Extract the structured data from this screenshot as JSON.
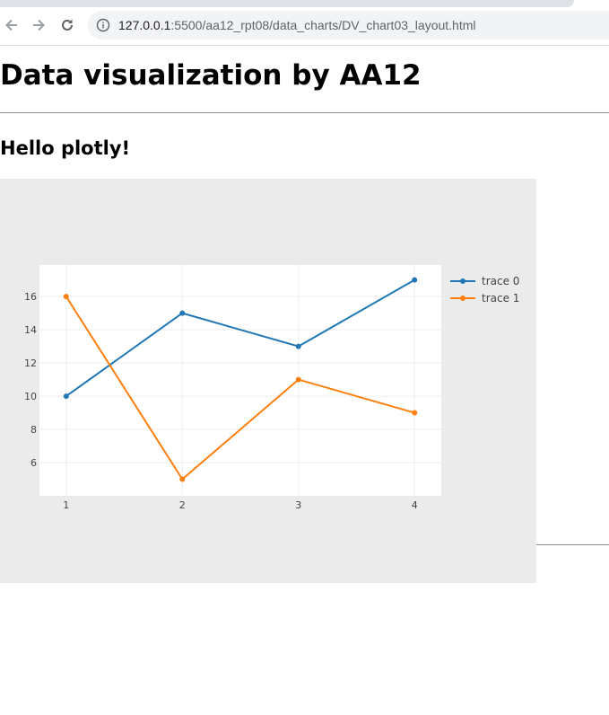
{
  "browser": {
    "url_host": "127.0.0.1",
    "url_rest": ":5500/aa12_rpt08/data_charts/DV_chart03_layout.html"
  },
  "page": {
    "title": "Data visualization by AA12",
    "subtitle": "Hello plotly!"
  },
  "colors": {
    "paper_bg": "#ebebeb",
    "plot_bg": "#ffffff",
    "trace0": "#1f77b4",
    "trace1": "#ff7f0e"
  },
  "chart_data": {
    "type": "line",
    "x": [
      1,
      2,
      3,
      4
    ],
    "xticks": [
      1,
      2,
      3,
      4
    ],
    "yticks": [
      6,
      8,
      10,
      12,
      14,
      16
    ],
    "xlim": [
      0.77,
      4.23
    ],
    "ylim": [
      4.0,
      17.9
    ],
    "grid": true,
    "legend_position": "top-right",
    "series": [
      {
        "name": "trace 0",
        "values": [
          10,
          15,
          13,
          17
        ],
        "color": "#1f77b4"
      },
      {
        "name": "trace 1",
        "values": [
          16,
          5,
          11,
          9
        ],
        "color": "#ff7f0e"
      }
    ]
  }
}
